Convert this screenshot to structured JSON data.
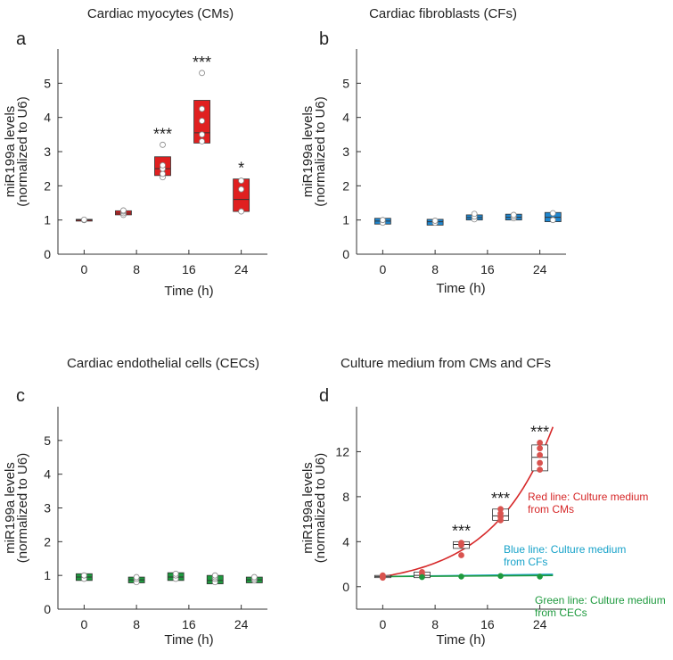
{
  "figure": {
    "panels": [
      {
        "letter": "a",
        "title": "Cardiac myocytes (CMs)",
        "ylabel_line1": "miR199a levels",
        "ylabel_line2": "(normalized to U6)",
        "xlabel": "Time (h)",
        "box_color": "#e02020",
        "dot_color": "#ffffff",
        "dot_stroke": "#888888"
      },
      {
        "letter": "b",
        "title": "Cardiac fibroblasts (CFs)",
        "ylabel_line1": "miR199a levels",
        "ylabel_line2": "(normalized to U6)",
        "xlabel": "Time (h)",
        "box_color": "#1f86cf",
        "dot_color": "#ffffff",
        "dot_stroke": "#888888"
      },
      {
        "letter": "c",
        "title": "Cardiac endothelial cells (CECs)",
        "ylabel_line1": "miR199a levels",
        "ylabel_line2": "(normalized to U6)",
        "xlabel": "Time (h)",
        "box_color": "#1e9a3e",
        "dot_color": "#ffffff",
        "dot_stroke": "#888888"
      },
      {
        "letter": "d",
        "title": "Culture medium from CMs and CFs",
        "ylabel_line1": "miR199a levels",
        "ylabel_line2": "(normalized to U6)",
        "xlabel": "Time (h)",
        "box_color": "#ffffff",
        "dot_color": "#d9534f",
        "dot_stroke": "#d9534f",
        "annotations": [
          {
            "line1": "Red line: Culture medium",
            "line2": "from CMs",
            "color": "#d62728"
          },
          {
            "line1": "Blue line: Culture medium",
            "line2": "from CFs",
            "color": "#17a2c9"
          },
          {
            "line1": "Green line: Culture medium",
            "line2": "from CECs",
            "color": "#1e9a3e"
          }
        ]
      }
    ]
  },
  "chart_data": [
    {
      "type": "box",
      "title": "Cardiac myocytes (CMs)",
      "xlabel": "Time (h)",
      "ylabel": "miR199a levels (normalized to U6)",
      "categories": [
        "0",
        "8",
        "16",
        "24"
      ],
      "ylim": [
        0,
        6
      ],
      "yticks": [
        0,
        1,
        2,
        3,
        4,
        5
      ],
      "boxes": [
        {
          "x": 0,
          "q1": 0.98,
          "median": 1.0,
          "q3": 1.02,
          "points": [
            1.0,
            1.0,
            1.0,
            1.01
          ],
          "sig": ""
        },
        {
          "x": 6,
          "q1": 1.15,
          "median": 1.2,
          "q3": 1.27,
          "points": [
            1.15,
            1.2,
            1.25,
            1.28
          ],
          "sig": ""
        },
        {
          "x": 12,
          "q1": 2.3,
          "median": 2.5,
          "q3": 2.85,
          "points": [
            2.25,
            2.35,
            2.5,
            2.6,
            3.2
          ],
          "sig": "***"
        },
        {
          "x": 18,
          "q1": 3.25,
          "median": 3.55,
          "q3": 4.5,
          "points": [
            3.3,
            3.5,
            3.9,
            4.25,
            5.3
          ],
          "sig": "***"
        },
        {
          "x": 24,
          "q1": 1.25,
          "median": 1.6,
          "q3": 2.2,
          "points": [
            1.25,
            1.9,
            2.15
          ],
          "sig": "*"
        }
      ],
      "xticks": [
        0,
        8,
        16,
        24
      ],
      "xlim": [
        -4,
        28
      ]
    },
    {
      "type": "box",
      "title": "Cardiac fibroblasts (CFs)",
      "xlabel": "Time (h)",
      "ylabel": "miR199a levels (normalized to U6)",
      "categories": [
        "0",
        "8",
        "16",
        "24"
      ],
      "ylim": [
        0,
        6
      ],
      "yticks": [
        0,
        1,
        2,
        3,
        4,
        5
      ],
      "boxes": [
        {
          "x": 0,
          "q1": 0.88,
          "median": 0.97,
          "q3": 1.05,
          "points": [
            0.92,
            1.0
          ],
          "sig": ""
        },
        {
          "x": 8,
          "q1": 0.85,
          "median": 0.95,
          "q3": 1.02,
          "points": [
            0.92,
            0.98
          ],
          "sig": ""
        },
        {
          "x": 14,
          "q1": 1.0,
          "median": 1.07,
          "q3": 1.15,
          "points": [
            1.02,
            1.1,
            1.18
          ],
          "sig": ""
        },
        {
          "x": 20,
          "q1": 1.0,
          "median": 1.08,
          "q3": 1.17,
          "points": [
            1.05,
            1.1,
            1.15
          ],
          "sig": ""
        },
        {
          "x": 26,
          "q1": 0.95,
          "median": 1.08,
          "q3": 1.22,
          "points": [
            1.0,
            1.2
          ],
          "sig": ""
        }
      ],
      "xticks": [
        0,
        8,
        16,
        24
      ],
      "xlim": [
        -4,
        28
      ]
    },
    {
      "type": "box",
      "title": "Cardiac endothelial cells (CECs)",
      "xlabel": "Time (h)",
      "ylabel": "miR199a levels (normalized to U6)",
      "categories": [
        "0",
        "8",
        "16",
        "24"
      ],
      "ylim": [
        0,
        6
      ],
      "yticks": [
        0,
        1,
        2,
        3,
        4,
        5
      ],
      "boxes": [
        {
          "x": 0,
          "q1": 0.85,
          "median": 0.95,
          "q3": 1.05,
          "points": [
            0.9,
            1.0
          ],
          "sig": ""
        },
        {
          "x": 8,
          "q1": 0.78,
          "median": 0.87,
          "q3": 0.95,
          "points": [
            0.8,
            0.9,
            0.95
          ],
          "sig": ""
        },
        {
          "x": 14,
          "q1": 0.85,
          "median": 0.95,
          "q3": 1.08,
          "points": [
            0.9,
            1.0,
            1.05
          ],
          "sig": ""
        },
        {
          "x": 20,
          "q1": 0.75,
          "median": 0.85,
          "q3": 1.0,
          "points": [
            0.8,
            0.9,
            0.95,
            1.0
          ],
          "sig": ""
        },
        {
          "x": 26,
          "q1": 0.78,
          "median": 0.87,
          "q3": 0.95,
          "points": [
            0.85,
            0.9,
            0.95
          ],
          "sig": ""
        }
      ],
      "xticks": [
        0,
        8,
        16,
        24
      ],
      "xlim": [
        -4,
        28
      ]
    },
    {
      "type": "box",
      "title": "Culture medium from CMs and CFs",
      "xlabel": "Time (h)",
      "ylabel": "miR199a levels (normalized to U6)",
      "categories": [
        "0",
        "8",
        "16",
        "24"
      ],
      "ylim": [
        -2,
        16
      ],
      "yticks": [
        0,
        4,
        8,
        12
      ],
      "boxes": [
        {
          "x": 0,
          "q1": 0.8,
          "median": 0.9,
          "q3": 1.0,
          "points": [
            0.8,
            0.9,
            1.0
          ],
          "sig": ""
        },
        {
          "x": 6,
          "q1": 0.8,
          "median": 1.0,
          "q3": 1.3,
          "points": [
            0.9,
            1.1,
            1.3
          ],
          "sig": ""
        },
        {
          "x": 12,
          "q1": 3.4,
          "median": 3.75,
          "q3": 4.0,
          "points": [
            2.8,
            3.7,
            3.9
          ],
          "sig": "***"
        },
        {
          "x": 18,
          "q1": 5.9,
          "median": 6.3,
          "q3": 6.9,
          "points": [
            5.9,
            6.2,
            6.5,
            6.9
          ],
          "sig": "***"
        },
        {
          "x": 24,
          "q1": 10.3,
          "median": 11.5,
          "q3": 12.6,
          "points": [
            10.4,
            11.0,
            11.7,
            12.3,
            12.8
          ],
          "sig": "***"
        }
      ],
      "xticks": [
        0,
        8,
        16,
        24
      ],
      "xlim": [
        -4,
        28
      ],
      "lines": [
        {
          "color": "#d62728",
          "x": [
            0,
            4,
            8,
            12,
            16,
            20,
            24,
            26
          ],
          "y": [
            0.9,
            1.1,
            1.8,
            3.2,
            5.5,
            8.8,
            12.6,
            14.2
          ]
        },
        {
          "color": "#17a2c9",
          "x": [
            0,
            26
          ],
          "y": [
            0.9,
            1.1
          ]
        },
        {
          "color": "#1e9a3e",
          "x": [
            0,
            26
          ],
          "y": [
            0.9,
            1.0
          ]
        }
      ],
      "green_points": [
        {
          "x": 6,
          "y": 0.85
        },
        {
          "x": 12,
          "y": 0.9
        },
        {
          "x": 18,
          "y": 0.95
        },
        {
          "x": 24,
          "y": 0.9
        }
      ]
    }
  ]
}
